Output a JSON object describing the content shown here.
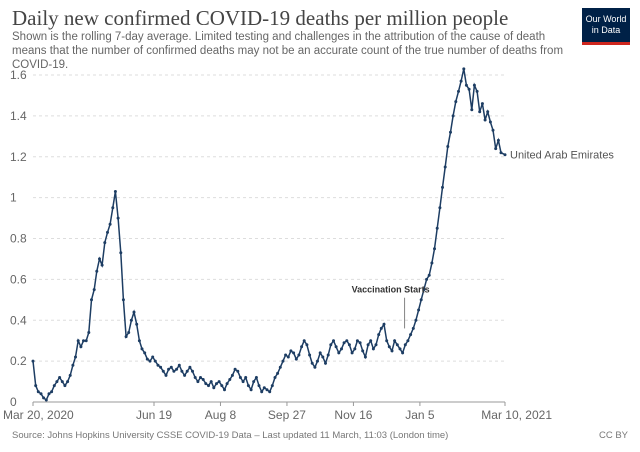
{
  "header": {
    "title": "Daily new confirmed COVID-19 deaths per million people",
    "subtitle": "Shown is the rolling 7-day average. Limited testing and challenges in the attribution of the cause of death means that the number of confirmed deaths may not be an accurate count of the true number of deaths from COVID-19.",
    "logo_line1": "Our World",
    "logo_line2": "in Data"
  },
  "footer": {
    "source": "Source: Johns Hopkins University CSSE COVID-19 Data – Last updated 11 March, 11:03 (London time)",
    "license": "CC BY"
  },
  "colors": {
    "series": "#1d3d63",
    "grid": "#dddddd",
    "axis_text": "#666666",
    "logo_bg": "#002147",
    "logo_accent": "#ce261e"
  },
  "chart_data": {
    "type": "line",
    "title": "Daily new confirmed COVID-19 deaths per million people",
    "xlabel": "",
    "ylabel": "",
    "ylim": [
      0,
      1.6
    ],
    "y_ticks": [
      "0",
      "0.2",
      "0.4",
      "0.6",
      "0.8",
      "1",
      "1.2",
      "1.4",
      "1.6"
    ],
    "x_range": [
      "2020-03-20",
      "2021-03-10"
    ],
    "x_ticks": [
      {
        "date": "2020-03-20",
        "label": "Mar 20, 2020"
      },
      {
        "date": "2020-06-19",
        "label": "Jun 19"
      },
      {
        "date": "2020-08-08",
        "label": "Aug 8"
      },
      {
        "date": "2020-09-27",
        "label": "Sep 27"
      },
      {
        "date": "2020-11-16",
        "label": "Nov 16"
      },
      {
        "date": "2021-01-05",
        "label": "Jan 5"
      },
      {
        "date": "2021-03-10",
        "label": "Mar 10, 2021"
      }
    ],
    "grid": "horizontal dashed",
    "series": [
      {
        "name": "United Arab Emirates",
        "points": [
          [
            "2020-03-20",
            0.2
          ],
          [
            "2020-03-22",
            0.08
          ],
          [
            "2020-03-24",
            0.05
          ],
          [
            "2020-03-26",
            0.04
          ],
          [
            "2020-03-28",
            0.02
          ],
          [
            "2020-03-30",
            0.01
          ],
          [
            "2020-04-01",
            0.04
          ],
          [
            "2020-04-03",
            0.05
          ],
          [
            "2020-04-05",
            0.08
          ],
          [
            "2020-04-07",
            0.1
          ],
          [
            "2020-04-09",
            0.12
          ],
          [
            "2020-04-11",
            0.1
          ],
          [
            "2020-04-13",
            0.08
          ],
          [
            "2020-04-15",
            0.1
          ],
          [
            "2020-04-17",
            0.13
          ],
          [
            "2020-04-19",
            0.18
          ],
          [
            "2020-04-21",
            0.22
          ],
          [
            "2020-04-23",
            0.3
          ],
          [
            "2020-04-25",
            0.27
          ],
          [
            "2020-04-27",
            0.3
          ],
          [
            "2020-04-29",
            0.3
          ],
          [
            "2020-05-01",
            0.34
          ],
          [
            "2020-05-03",
            0.5
          ],
          [
            "2020-05-05",
            0.55
          ],
          [
            "2020-05-07",
            0.64
          ],
          [
            "2020-05-09",
            0.7
          ],
          [
            "2020-05-11",
            0.67
          ],
          [
            "2020-05-13",
            0.78
          ],
          [
            "2020-05-15",
            0.83
          ],
          [
            "2020-05-17",
            0.87
          ],
          [
            "2020-05-19",
            0.95
          ],
          [
            "2020-05-21",
            1.03
          ],
          [
            "2020-05-23",
            0.9
          ],
          [
            "2020-05-25",
            0.73
          ],
          [
            "2020-05-27",
            0.5
          ],
          [
            "2020-05-29",
            0.32
          ],
          [
            "2020-05-31",
            0.34
          ],
          [
            "2020-06-02",
            0.4
          ],
          [
            "2020-06-04",
            0.44
          ],
          [
            "2020-06-06",
            0.38
          ],
          [
            "2020-06-08",
            0.3
          ],
          [
            "2020-06-10",
            0.26
          ],
          [
            "2020-06-12",
            0.24
          ],
          [
            "2020-06-14",
            0.21
          ],
          [
            "2020-06-16",
            0.2
          ],
          [
            "2020-06-18",
            0.22
          ],
          [
            "2020-06-20",
            0.2
          ],
          [
            "2020-06-22",
            0.18
          ],
          [
            "2020-06-24",
            0.17
          ],
          [
            "2020-06-26",
            0.15
          ],
          [
            "2020-06-28",
            0.13
          ],
          [
            "2020-06-30",
            0.16
          ],
          [
            "2020-07-02",
            0.17
          ],
          [
            "2020-07-04",
            0.15
          ],
          [
            "2020-07-06",
            0.16
          ],
          [
            "2020-07-08",
            0.18
          ],
          [
            "2020-07-10",
            0.15
          ],
          [
            "2020-07-12",
            0.13
          ],
          [
            "2020-07-14",
            0.15
          ],
          [
            "2020-07-16",
            0.17
          ],
          [
            "2020-07-18",
            0.15
          ],
          [
            "2020-07-20",
            0.12
          ],
          [
            "2020-07-22",
            0.1
          ],
          [
            "2020-07-24",
            0.12
          ],
          [
            "2020-07-26",
            0.11
          ],
          [
            "2020-07-28",
            0.09
          ],
          [
            "2020-07-30",
            0.08
          ],
          [
            "2020-08-01",
            0.1
          ],
          [
            "2020-08-03",
            0.07
          ],
          [
            "2020-08-05",
            0.09
          ],
          [
            "2020-08-07",
            0.1
          ],
          [
            "2020-08-09",
            0.08
          ],
          [
            "2020-08-11",
            0.06
          ],
          [
            "2020-08-13",
            0.09
          ],
          [
            "2020-08-15",
            0.11
          ],
          [
            "2020-08-17",
            0.13
          ],
          [
            "2020-08-19",
            0.16
          ],
          [
            "2020-08-21",
            0.15
          ],
          [
            "2020-08-23",
            0.12
          ],
          [
            "2020-08-25",
            0.1
          ],
          [
            "2020-08-27",
            0.12
          ],
          [
            "2020-08-29",
            0.08
          ],
          [
            "2020-08-31",
            0.06
          ],
          [
            "2020-09-02",
            0.1
          ],
          [
            "2020-09-04",
            0.12
          ],
          [
            "2020-09-06",
            0.08
          ],
          [
            "2020-09-08",
            0.05
          ],
          [
            "2020-09-10",
            0.07
          ],
          [
            "2020-09-12",
            0.06
          ],
          [
            "2020-09-14",
            0.05
          ],
          [
            "2020-09-16",
            0.08
          ],
          [
            "2020-09-18",
            0.12
          ],
          [
            "2020-09-20",
            0.14
          ],
          [
            "2020-09-22",
            0.17
          ],
          [
            "2020-09-24",
            0.2
          ],
          [
            "2020-09-26",
            0.23
          ],
          [
            "2020-09-28",
            0.22
          ],
          [
            "2020-09-30",
            0.25
          ],
          [
            "2020-10-02",
            0.24
          ],
          [
            "2020-10-04",
            0.21
          ],
          [
            "2020-10-06",
            0.23
          ],
          [
            "2020-10-08",
            0.27
          ],
          [
            "2020-10-10",
            0.3
          ],
          [
            "2020-10-12",
            0.28
          ],
          [
            "2020-10-14",
            0.23
          ],
          [
            "2020-10-16",
            0.19
          ],
          [
            "2020-10-18",
            0.17
          ],
          [
            "2020-10-20",
            0.2
          ],
          [
            "2020-10-22",
            0.24
          ],
          [
            "2020-10-24",
            0.22
          ],
          [
            "2020-10-26",
            0.19
          ],
          [
            "2020-10-28",
            0.23
          ],
          [
            "2020-10-30",
            0.28
          ],
          [
            "2020-11-01",
            0.3
          ],
          [
            "2020-11-03",
            0.27
          ],
          [
            "2020-11-05",
            0.24
          ],
          [
            "2020-11-07",
            0.26
          ],
          [
            "2020-11-09",
            0.29
          ],
          [
            "2020-11-11",
            0.3
          ],
          [
            "2020-11-13",
            0.28
          ],
          [
            "2020-11-15",
            0.24
          ],
          [
            "2020-11-17",
            0.26
          ],
          [
            "2020-11-19",
            0.3
          ],
          [
            "2020-11-21",
            0.29
          ],
          [
            "2020-11-23",
            0.25
          ],
          [
            "2020-11-25",
            0.22
          ],
          [
            "2020-11-27",
            0.28
          ],
          [
            "2020-11-29",
            0.3
          ],
          [
            "2020-12-01",
            0.26
          ],
          [
            "2020-12-03",
            0.28
          ],
          [
            "2020-12-05",
            0.33
          ],
          [
            "2020-12-07",
            0.36
          ],
          [
            "2020-12-09",
            0.38
          ],
          [
            "2020-12-11",
            0.3
          ],
          [
            "2020-12-13",
            0.27
          ],
          [
            "2020-12-15",
            0.25
          ],
          [
            "2020-12-17",
            0.3
          ],
          [
            "2020-12-19",
            0.28
          ],
          [
            "2020-12-21",
            0.26
          ],
          [
            "2020-12-23",
            0.24
          ],
          [
            "2020-12-25",
            0.28
          ],
          [
            "2020-12-27",
            0.3
          ],
          [
            "2020-12-29",
            0.33
          ],
          [
            "2020-12-31",
            0.36
          ],
          [
            "2021-01-02",
            0.4
          ],
          [
            "2021-01-04",
            0.45
          ],
          [
            "2021-01-06",
            0.5
          ],
          [
            "2021-01-08",
            0.55
          ],
          [
            "2021-01-10",
            0.6
          ],
          [
            "2021-01-12",
            0.62
          ],
          [
            "2021-01-14",
            0.68
          ],
          [
            "2021-01-16",
            0.75
          ],
          [
            "2021-01-18",
            0.85
          ],
          [
            "2021-01-20",
            0.95
          ],
          [
            "2021-01-22",
            1.05
          ],
          [
            "2021-01-24",
            1.15
          ],
          [
            "2021-01-26",
            1.25
          ],
          [
            "2021-01-28",
            1.32
          ],
          [
            "2021-01-30",
            1.4
          ],
          [
            "2021-02-01",
            1.47
          ],
          [
            "2021-02-03",
            1.52
          ],
          [
            "2021-02-05",
            1.57
          ],
          [
            "2021-02-07",
            1.63
          ],
          [
            "2021-02-09",
            1.55
          ],
          [
            "2021-02-11",
            1.53
          ],
          [
            "2021-02-13",
            1.43
          ],
          [
            "2021-02-15",
            1.55
          ],
          [
            "2021-02-17",
            1.52
          ],
          [
            "2021-02-19",
            1.42
          ],
          [
            "2021-02-21",
            1.46
          ],
          [
            "2021-02-23",
            1.38
          ],
          [
            "2021-02-25",
            1.42
          ],
          [
            "2021-02-27",
            1.37
          ],
          [
            "2021-03-01",
            1.33
          ],
          [
            "2021-03-03",
            1.24
          ],
          [
            "2021-03-05",
            1.28
          ],
          [
            "2021-03-07",
            1.22
          ],
          [
            "2021-03-10",
            1.21
          ]
        ]
      }
    ],
    "annotations": [
      {
        "text": "Vaccination Starts",
        "date": "2020-12-14",
        "y": 0.52
      }
    ]
  }
}
